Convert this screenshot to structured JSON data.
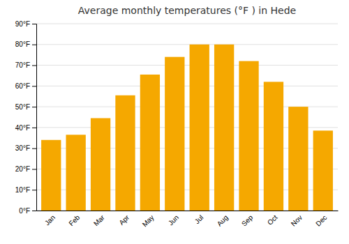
{
  "chart_data": {
    "type": "bar",
    "title": "Average monthly temperatures (°F ) in Hede",
    "categories": [
      "Jan",
      "Feb",
      "Mar",
      "Apr",
      "May",
      "Jun",
      "Jul",
      "Aug",
      "Sep",
      "Oct",
      "Nov",
      "Dec"
    ],
    "values": [
      34,
      36.5,
      44.5,
      55.5,
      65.5,
      74,
      80,
      80,
      72,
      62,
      50,
      38.5
    ],
    "color": "#F5A800",
    "ylim": [
      0,
      90
    ],
    "yticks": [
      {
        "value": 0,
        "label": "0°F"
      },
      {
        "value": 10,
        "label": "10°F"
      },
      {
        "value": 20,
        "label": "20°F"
      },
      {
        "value": 30,
        "label": "30°F"
      },
      {
        "value": 40,
        "label": "40°F"
      },
      {
        "value": 50,
        "label": "50°F"
      },
      {
        "value": 60,
        "label": "60°F"
      },
      {
        "value": 70,
        "label": "70°F"
      },
      {
        "value": 80,
        "label": "80°F"
      },
      {
        "value": 90,
        "label": "90°F"
      }
    ],
    "grid": true
  }
}
